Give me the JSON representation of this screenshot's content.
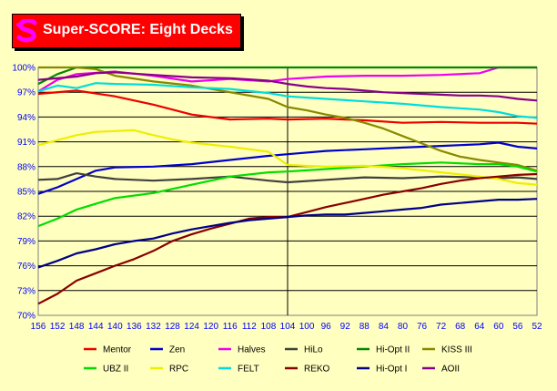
{
  "title": "Super-SCORE: Eight Decks",
  "logo_icon": "s-logo-icon",
  "colors": {
    "background": "#ffffc0",
    "title_background": "#ff0000",
    "title_text": "#ffffff",
    "logo": "#ff00ff",
    "axis_labels": "#0000ff"
  },
  "chart_data": {
    "type": "line",
    "title": "Super-SCORE: Eight Decks",
    "x_direction": "descending",
    "x_ticks": [
      156,
      152,
      148,
      144,
      140,
      136,
      132,
      128,
      124,
      120,
      116,
      112,
      108,
      104,
      100,
      96,
      92,
      88,
      84,
      80,
      76,
      72,
      68,
      64,
      60,
      56,
      52
    ],
    "y_ticks": [
      "70%",
      "73%",
      "76%",
      "79%",
      "82%",
      "85%",
      "88%",
      "91%",
      "94%",
      "97%",
      "100%"
    ],
    "xlim": [
      156,
      52
    ],
    "ylim": [
      70,
      100
    ],
    "y_unit": "%",
    "grid": {
      "horizontal": true,
      "vertical": false,
      "marker_x": 104
    },
    "legend_position": "bottom",
    "series": [
      {
        "name": "Mentor",
        "color": "#ee0000",
        "points": [
          [
            156,
            96.8
          ],
          [
            148,
            97.2
          ],
          [
            140,
            96.5
          ],
          [
            132,
            95.5
          ],
          [
            124,
            94.3
          ],
          [
            116,
            93.7
          ],
          [
            108,
            93.8
          ],
          [
            104,
            93.7
          ],
          [
            96,
            93.8
          ],
          [
            88,
            93.6
          ],
          [
            80,
            93.3
          ],
          [
            72,
            93.4
          ],
          [
            64,
            93.3
          ],
          [
            56,
            93.3
          ],
          [
            52,
            93.2
          ]
        ]
      },
      {
        "name": "Zen",
        "color": "#0000cc",
        "points": [
          [
            156,
            84.7
          ],
          [
            152,
            85.5
          ],
          [
            148,
            86.5
          ],
          [
            144,
            87.5
          ],
          [
            140,
            87.9
          ],
          [
            132,
            88.0
          ],
          [
            124,
            88.3
          ],
          [
            116,
            88.8
          ],
          [
            108,
            89.3
          ],
          [
            104,
            89.5
          ],
          [
            96,
            89.9
          ],
          [
            88,
            90.1
          ],
          [
            80,
            90.3
          ],
          [
            72,
            90.5
          ],
          [
            64,
            90.7
          ],
          [
            60,
            90.9
          ],
          [
            56,
            90.4
          ],
          [
            52,
            90.2
          ]
        ]
      },
      {
        "name": "Halves",
        "color": "#ee00ee",
        "points": [
          [
            156,
            97.1
          ],
          [
            152,
            98.5
          ],
          [
            148,
            99.2
          ],
          [
            140,
            99.5
          ],
          [
            132,
            99.0
          ],
          [
            124,
            98.3
          ],
          [
            116,
            98.6
          ],
          [
            108,
            98.3
          ],
          [
            104,
            98.6
          ],
          [
            96,
            98.9
          ],
          [
            88,
            99.0
          ],
          [
            80,
            99.0
          ],
          [
            72,
            99.1
          ],
          [
            64,
            99.3
          ],
          [
            60,
            100.0
          ],
          [
            56,
            100.0
          ],
          [
            52,
            100.0
          ]
        ]
      },
      {
        "name": "HiLo",
        "color": "#404040",
        "points": [
          [
            156,
            86.4
          ],
          [
            152,
            86.5
          ],
          [
            148,
            87.2
          ],
          [
            144,
            86.8
          ],
          [
            140,
            86.5
          ],
          [
            132,
            86.3
          ],
          [
            124,
            86.5
          ],
          [
            116,
            86.8
          ],
          [
            108,
            86.3
          ],
          [
            104,
            86.1
          ],
          [
            96,
            86.4
          ],
          [
            88,
            86.7
          ],
          [
            80,
            86.6
          ],
          [
            72,
            86.8
          ],
          [
            64,
            86.7
          ],
          [
            60,
            86.6
          ],
          [
            56,
            86.7
          ],
          [
            52,
            86.5
          ]
        ]
      },
      {
        "name": "Hi-Opt II",
        "color": "#008800",
        "points": [
          [
            156,
            98.0
          ],
          [
            152,
            99.2
          ],
          [
            148,
            100.0
          ],
          [
            140,
            100.0
          ],
          [
            132,
            100.0
          ],
          [
            124,
            100.0
          ],
          [
            116,
            100.0
          ],
          [
            108,
            100.0
          ],
          [
            104,
            100.0
          ],
          [
            96,
            100.0
          ],
          [
            88,
            100.0
          ],
          [
            80,
            100.0
          ],
          [
            72,
            100.0
          ],
          [
            64,
            100.0
          ],
          [
            56,
            100.0
          ],
          [
            52,
            100.0
          ]
        ]
      },
      {
        "name": "KISS III",
        "color": "#888800",
        "points": [
          [
            156,
            100.0
          ],
          [
            148,
            100.0
          ],
          [
            144,
            99.8
          ],
          [
            140,
            99.0
          ],
          [
            132,
            98.3
          ],
          [
            124,
            97.8
          ],
          [
            116,
            97.0
          ],
          [
            108,
            96.2
          ],
          [
            104,
            95.2
          ],
          [
            100,
            94.8
          ],
          [
            96,
            94.3
          ],
          [
            92,
            93.9
          ],
          [
            88,
            93.3
          ],
          [
            84,
            92.6
          ],
          [
            80,
            91.7
          ],
          [
            76,
            90.8
          ],
          [
            72,
            89.9
          ],
          [
            68,
            89.2
          ],
          [
            64,
            88.8
          ],
          [
            60,
            88.5
          ],
          [
            56,
            88.2
          ],
          [
            52,
            87.5
          ]
        ]
      },
      {
        "name": "UBZ II",
        "color": "#00dd00",
        "points": [
          [
            156,
            80.8
          ],
          [
            152,
            81.7
          ],
          [
            148,
            82.8
          ],
          [
            144,
            83.5
          ],
          [
            140,
            84.2
          ],
          [
            132,
            84.8
          ],
          [
            124,
            85.8
          ],
          [
            116,
            86.8
          ],
          [
            108,
            87.3
          ],
          [
            104,
            87.4
          ],
          [
            96,
            87.7
          ],
          [
            88,
            88.0
          ],
          [
            80,
            88.3
          ],
          [
            72,
            88.5
          ],
          [
            64,
            88.3
          ],
          [
            60,
            88.3
          ],
          [
            56,
            88.0
          ],
          [
            52,
            87.4
          ]
        ]
      },
      {
        "name": "RPC",
        "color": "#eeee00",
        "points": [
          [
            156,
            90.6
          ],
          [
            152,
            91.2
          ],
          [
            148,
            91.8
          ],
          [
            144,
            92.2
          ],
          [
            140,
            92.3
          ],
          [
            136,
            92.4
          ],
          [
            132,
            91.8
          ],
          [
            128,
            91.3
          ],
          [
            124,
            90.9
          ],
          [
            116,
            90.4
          ],
          [
            108,
            89.8
          ],
          [
            104,
            88.2
          ],
          [
            96,
            88.0
          ],
          [
            88,
            88.1
          ],
          [
            80,
            87.8
          ],
          [
            72,
            87.3
          ],
          [
            64,
            86.8
          ],
          [
            60,
            86.5
          ],
          [
            56,
            86.0
          ],
          [
            52,
            85.8
          ]
        ]
      },
      {
        "name": "FELT",
        "color": "#00dddd",
        "points": [
          [
            156,
            97.1
          ],
          [
            152,
            97.8
          ],
          [
            148,
            97.5
          ],
          [
            144,
            98.1
          ],
          [
            140,
            98.0
          ],
          [
            132,
            97.9
          ],
          [
            124,
            97.6
          ],
          [
            116,
            97.4
          ],
          [
            108,
            96.9
          ],
          [
            104,
            96.5
          ],
          [
            96,
            96.2
          ],
          [
            88,
            95.9
          ],
          [
            80,
            95.6
          ],
          [
            72,
            95.2
          ],
          [
            64,
            94.9
          ],
          [
            60,
            94.6
          ],
          [
            56,
            94.1
          ],
          [
            52,
            93.9
          ]
        ]
      },
      {
        "name": "REKO",
        "color": "#880000",
        "points": [
          [
            156,
            71.4
          ],
          [
            152,
            72.6
          ],
          [
            148,
            74.2
          ],
          [
            144,
            75.1
          ],
          [
            140,
            76.0
          ],
          [
            136,
            76.8
          ],
          [
            132,
            77.8
          ],
          [
            128,
            79.0
          ],
          [
            124,
            79.8
          ],
          [
            120,
            80.5
          ],
          [
            116,
            81.1
          ],
          [
            112,
            81.7
          ],
          [
            108,
            81.9
          ],
          [
            104,
            81.9
          ],
          [
            100,
            82.5
          ],
          [
            96,
            83.1
          ],
          [
            92,
            83.6
          ],
          [
            88,
            84.1
          ],
          [
            84,
            84.6
          ],
          [
            80,
            85.0
          ],
          [
            76,
            85.4
          ],
          [
            72,
            85.9
          ],
          [
            68,
            86.3
          ],
          [
            64,
            86.6
          ],
          [
            60,
            86.8
          ],
          [
            56,
            87.0
          ],
          [
            52,
            87.1
          ]
        ]
      },
      {
        "name": "Hi-Opt I",
        "color": "#000088",
        "points": [
          [
            156,
            75.8
          ],
          [
            152,
            76.6
          ],
          [
            148,
            77.5
          ],
          [
            144,
            78.0
          ],
          [
            140,
            78.6
          ],
          [
            136,
            79.0
          ],
          [
            132,
            79.3
          ],
          [
            128,
            79.9
          ],
          [
            124,
            80.4
          ],
          [
            120,
            80.8
          ],
          [
            116,
            81.2
          ],
          [
            112,
            81.5
          ],
          [
            108,
            81.7
          ],
          [
            104,
            81.9
          ],
          [
            100,
            82.1
          ],
          [
            96,
            82.2
          ],
          [
            92,
            82.2
          ],
          [
            88,
            82.4
          ],
          [
            84,
            82.6
          ],
          [
            80,
            82.8
          ],
          [
            76,
            83.0
          ],
          [
            72,
            83.4
          ],
          [
            68,
            83.6
          ],
          [
            64,
            83.8
          ],
          [
            60,
            84.0
          ],
          [
            56,
            84.0
          ],
          [
            52,
            84.1
          ]
        ]
      },
      {
        "name": "AOII",
        "color": "#880088",
        "points": [
          [
            156,
            98.5
          ],
          [
            148,
            98.9
          ],
          [
            144,
            99.3
          ],
          [
            140,
            99.4
          ],
          [
            132,
            99.1
          ],
          [
            124,
            98.8
          ],
          [
            116,
            98.7
          ],
          [
            108,
            98.4
          ],
          [
            104,
            98.0
          ],
          [
            100,
            97.7
          ],
          [
            96,
            97.5
          ],
          [
            92,
            97.4
          ],
          [
            88,
            97.2
          ],
          [
            84,
            97.0
          ],
          [
            80,
            96.9
          ],
          [
            76,
            96.8
          ],
          [
            72,
            96.7
          ],
          [
            68,
            96.6
          ],
          [
            64,
            96.6
          ],
          [
            60,
            96.5
          ],
          [
            56,
            96.2
          ],
          [
            52,
            96.0
          ]
        ]
      }
    ]
  }
}
